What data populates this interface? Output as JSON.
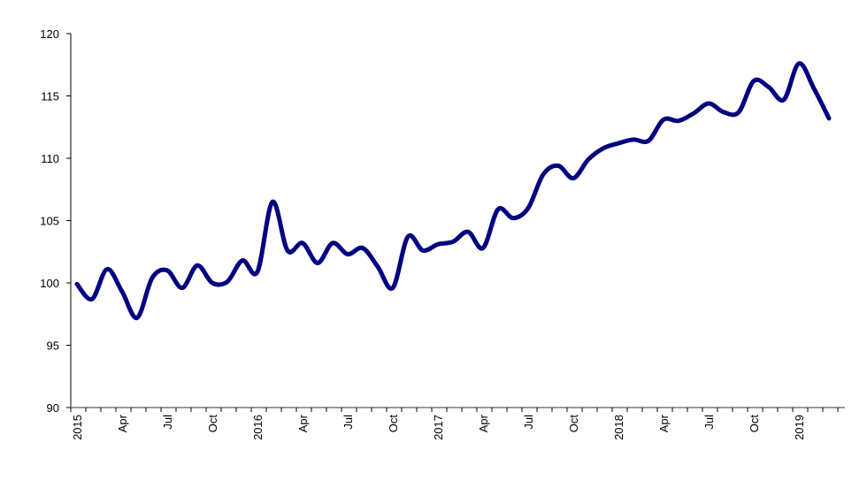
{
  "chart_data": {
    "type": "line",
    "title": "",
    "xlabel": "",
    "ylabel": "",
    "ylim": [
      90,
      120
    ],
    "yticks": [
      90,
      95,
      100,
      105,
      110,
      115,
      120
    ],
    "x_tick_labels": [
      "2015",
      "Apr",
      "Jul",
      "Oct",
      "2016",
      "Apr",
      "Jul",
      "Oct",
      "2017",
      "Apr",
      "Jul",
      "Oct",
      "2018",
      "Apr",
      "Jul",
      "Oct",
      "2019"
    ],
    "x_start": "2015-01",
    "x_end": "2019-03",
    "frequency": "monthly",
    "grid": false,
    "legend": "none",
    "line_color": "#000080",
    "series": [
      {
        "values": [
          99.9,
          98.7,
          101.1,
          99.3,
          97.2,
          100.4,
          101.0,
          99.6,
          101.4,
          100.0,
          100.1,
          101.8,
          100.9,
          106.5,
          102.6,
          103.2,
          101.6,
          103.2,
          102.3,
          102.8,
          101.3,
          99.6,
          103.7,
          102.6,
          103.1,
          103.3,
          104.1,
          102.8,
          105.9,
          105.2,
          106.0,
          108.7,
          109.4,
          108.4,
          109.9,
          110.8,
          111.2,
          111.5,
          111.4,
          113.1,
          113.0,
          113.6,
          114.4,
          113.7,
          113.7,
          116.2,
          115.7,
          114.7,
          117.6,
          115.6,
          113.2
        ]
      }
    ]
  }
}
